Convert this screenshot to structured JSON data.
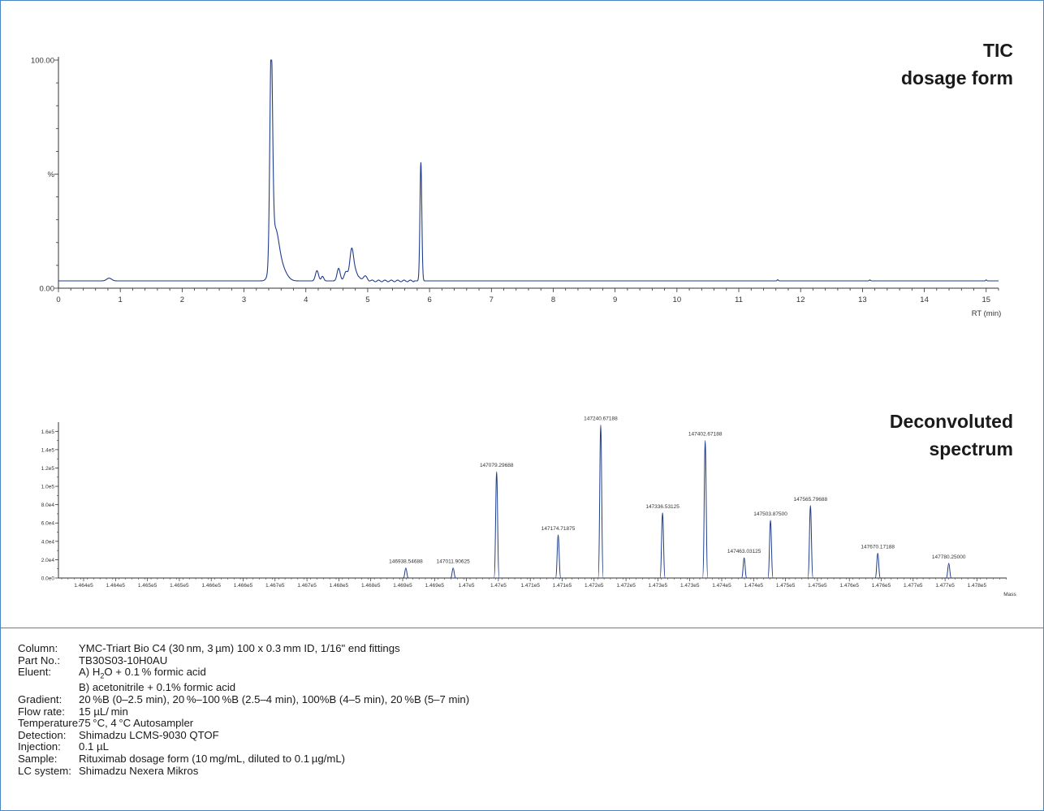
{
  "chart_data": [
    {
      "type": "line",
      "title_lines": [
        "TIC",
        "dosage form"
      ],
      "xlabel": "RT (min)",
      "y_tick_labels": [
        {
          "value": 0,
          "label": "0.00"
        },
        {
          "value": 50,
          "label": "%"
        },
        {
          "value": 100,
          "label": "100.00"
        }
      ],
      "xlim": [
        0,
        15.2
      ],
      "ylim": [
        0,
        100
      ],
      "x_ticks": [
        0,
        1,
        2,
        3,
        4,
        5,
        6,
        7,
        8,
        9,
        10,
        11,
        12,
        13,
        14,
        15
      ],
      "baseline": 3.2,
      "peaks": [
        {
          "rt": 0.82,
          "height": 1.2,
          "width": 0.04
        },
        {
          "rt": 3.44,
          "height": 92,
          "width": 0.022
        },
        {
          "rt": 3.5,
          "height": 20,
          "width": 0.06
        },
        {
          "rt": 3.6,
          "height": 6,
          "width": 0.08
        },
        {
          "rt": 4.18,
          "height": 4.5,
          "width": 0.025
        },
        {
          "rt": 4.27,
          "height": 2.0,
          "width": 0.02
        },
        {
          "rt": 4.53,
          "height": 5.5,
          "width": 0.025
        },
        {
          "rt": 4.65,
          "height": 4.0,
          "width": 0.03
        },
        {
          "rt": 4.74,
          "height": 13.0,
          "width": 0.03
        },
        {
          "rt": 4.8,
          "height": 4.0,
          "width": 0.04
        },
        {
          "rt": 4.95,
          "height": 2.0,
          "width": 0.04
        },
        {
          "rt": 5.86,
          "height": 52,
          "width": 0.015
        },
        {
          "rt": 11.63,
          "height": 0.5,
          "width": 0.01
        },
        {
          "rt": 13.12,
          "height": 0.4,
          "width": 0.01
        },
        {
          "rt": 15.0,
          "height": 0.4,
          "width": 0.01
        }
      ]
    },
    {
      "type": "bar",
      "title_lines": [
        "Deconvoluted",
        "spectrum"
      ],
      "xlabel": "Mass",
      "xlim": [
        146400,
        147870
      ],
      "ylim": [
        0,
        170000
      ],
      "y_ticks": [
        {
          "value": 0,
          "label": "0.0e0"
        },
        {
          "value": 20000,
          "label": "2.0e4"
        },
        {
          "value": 40000,
          "label": "4.0e4"
        },
        {
          "value": 60000,
          "label": "6.0e4"
        },
        {
          "value": 80000,
          "label": "8.0e4"
        },
        {
          "value": 100000,
          "label": "1.0e5"
        },
        {
          "value": 120000,
          "label": "1.2e5"
        },
        {
          "value": 140000,
          "label": "1.4e5"
        },
        {
          "value": 160000,
          "label": "1.6e5"
        }
      ],
      "x_tick_labels": [
        "1.464e5",
        "1.464e5",
        "1.465e5",
        "1.465e5",
        "1.466e5",
        "1.466e5",
        "1.467e5",
        "1.467e5",
        "1.468e5",
        "1.468e5",
        "1.469e5",
        "1.469e5",
        "1.47e5",
        "1.47e5",
        "1.471e5",
        "1.471e5",
        "1.472e5",
        "1.472e5",
        "1.473e5",
        "1.473e5",
        "1.474e5",
        "1.474e5",
        "1.475e5",
        "1.475e5",
        "1.476e5",
        "1.476e5",
        "1.477e5",
        "1.477e5",
        "1.478e5"
      ],
      "peaks": [
        {
          "mass": 146938.54688,
          "label": "146938.54688",
          "intensity": 11000
        },
        {
          "mass": 147011.90625,
          "label": "147011.90625",
          "intensity": 11000
        },
        {
          "mass": 147079.29688,
          "label": "147079.29688",
          "intensity": 116000
        },
        {
          "mass": 147174.71875,
          "label": "147174.71875",
          "intensity": 47000
        },
        {
          "mass": 147240.67188,
          "label": "147240.67188",
          "intensity": 167000
        },
        {
          "mass": 147336.53125,
          "label": "147336.53125",
          "intensity": 71000
        },
        {
          "mass": 147402.67188,
          "label": "147402.67188",
          "intensity": 150000
        },
        {
          "mass": 147463.03125,
          "label": "147463.03125",
          "intensity": 22000
        },
        {
          "mass": 147503.875,
          "label": "147503.87500",
          "intensity": 63000
        },
        {
          "mass": 147565.79688,
          "label": "147565.79688",
          "intensity": 79000
        },
        {
          "mass": 147670.17188,
          "label": "147670.17188",
          "intensity": 27000
        },
        {
          "mass": 147780.25,
          "label": "147780.25000",
          "intensity": 16000
        }
      ]
    }
  ],
  "conditions": [
    {
      "label": "Column:",
      "value": "YMC-Triart Bio C4 (30 nm, 3 µm) 100 x 0.3 mm ID, 1/16\" end fittings"
    },
    {
      "label": "Part No.:",
      "value": "TB30S03-10H0AU"
    },
    {
      "label": "Eluent:",
      "value_pre": "A) H",
      "value_sub": "2",
      "value_post": "O + 0.1 % formic acid"
    },
    {
      "label": "",
      "value": "B) acetonitrile + 0.1% formic acid"
    },
    {
      "label": "Gradient:",
      "value": "20 %B (0–2.5 min), 20 %–100 %B (2.5–4 min), 100%B (4–5 min), 20 %B (5–7 min)"
    },
    {
      "label": "Flow rate:",
      "value": "15 µL/ min"
    },
    {
      "label": "Temperature:",
      "value": "75 °C, 4 °C Autosampler"
    },
    {
      "label": "Detection:",
      "value": "Shimadzu LCMS-9030 QTOF"
    },
    {
      "label": "Injection:",
      "value": "0.1 µL"
    },
    {
      "label": "Sample:",
      "value": "Rituximab dosage form (10 mg/mL, diluted to 0.1 µg/mL)"
    },
    {
      "label": "LC system:",
      "value": "Shimadzu Nexera Mikros"
    }
  ],
  "colors": {
    "trace": "#1f3d8c",
    "frame": "#4a86c5",
    "axis": "#333333"
  }
}
